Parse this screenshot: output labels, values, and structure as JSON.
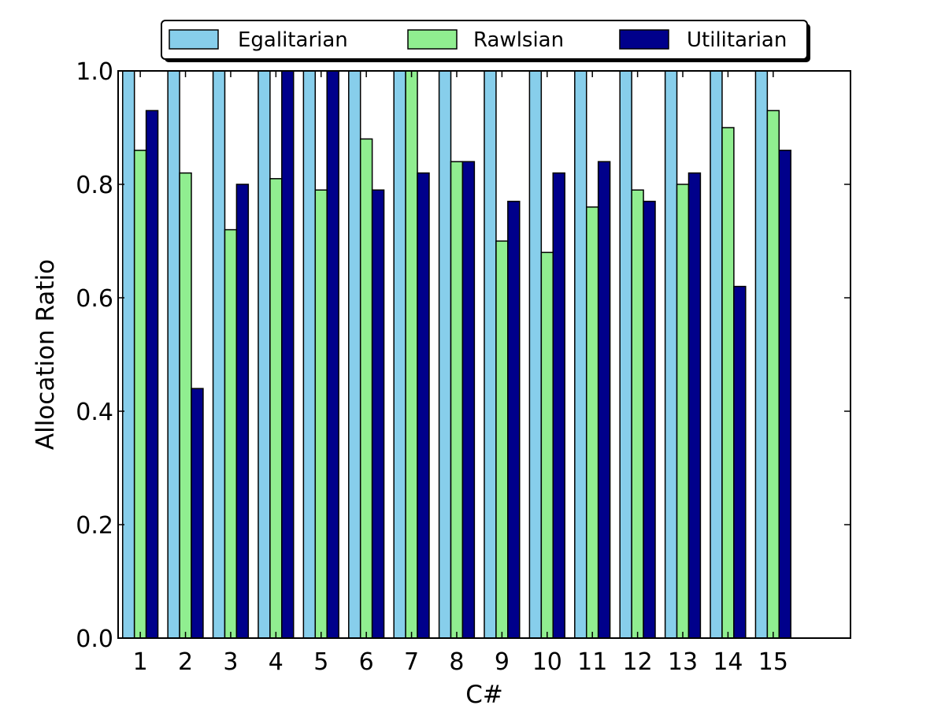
{
  "chart_data": {
    "type": "bar",
    "title": "",
    "xlabel": "C#",
    "ylabel": "Allocation Ratio",
    "ylim": [
      0.0,
      1.0
    ],
    "yticks": [
      "0.0",
      "0.2",
      "0.4",
      "0.6",
      "0.8",
      "1.0"
    ],
    "categories": [
      "1",
      "2",
      "3",
      "4",
      "5",
      "6",
      "7",
      "8",
      "9",
      "10",
      "11",
      "12",
      "13",
      "14",
      "15"
    ],
    "legend_position": "top-center",
    "grid": false,
    "series": [
      {
        "name": "Egalitarian",
        "color": "#87ceeb",
        "values": [
          1.0,
          1.0,
          1.0,
          1.0,
          1.0,
          1.0,
          1.0,
          1.0,
          1.0,
          1.0,
          1.0,
          1.0,
          1.0,
          1.0,
          1.0
        ]
      },
      {
        "name": "Rawlsian",
        "color": "#90ee90",
        "values": [
          0.86,
          0.82,
          0.72,
          0.81,
          0.79,
          0.88,
          1.0,
          0.84,
          0.7,
          0.68,
          0.76,
          0.79,
          0.8,
          0.9,
          0.93
        ]
      },
      {
        "name": "Utilitarian",
        "color": "#00008b",
        "values": [
          0.93,
          0.44,
          0.8,
          1.0,
          1.0,
          0.79,
          0.82,
          0.84,
          0.77,
          0.82,
          0.84,
          0.77,
          0.82,
          0.62,
          0.86
        ]
      }
    ]
  }
}
